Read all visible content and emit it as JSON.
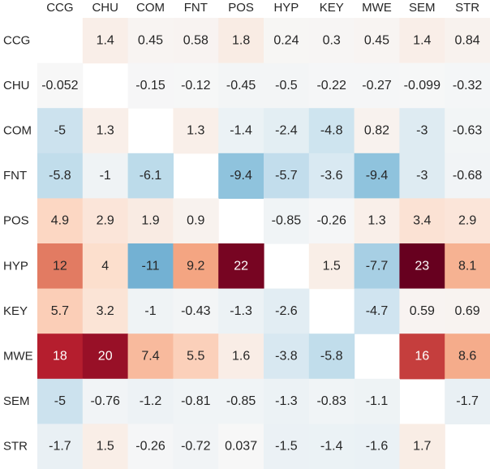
{
  "chart_data": {
    "type": "heatmap",
    "x_labels": [
      "CCG",
      "CHU",
      "COM",
      "FNT",
      "POS",
      "HYP",
      "KEY",
      "MWE",
      "SEM",
      "STR"
    ],
    "y_labels": [
      "CCG",
      "CHU",
      "COM",
      "FNT",
      "POS",
      "HYP",
      "KEY",
      "MWE",
      "SEM",
      "STR"
    ],
    "values": [
      [
        null,
        1.4,
        0.45,
        0.58,
        1.8,
        0.24,
        0.3,
        0.45,
        1.4,
        0.84
      ],
      [
        -0.052,
        null,
        -0.15,
        -0.12,
        -0.45,
        -0.5,
        -0.22,
        -0.27,
        -0.099,
        -0.32
      ],
      [
        -5,
        1.3,
        null,
        1.3,
        -1.4,
        -2.4,
        -4.8,
        0.82,
        -3,
        -0.63
      ],
      [
        -5.8,
        -1,
        -6.1,
        null,
        -9.4,
        -5.7,
        -3.6,
        -9.4,
        -3,
        -0.68
      ],
      [
        4.9,
        2.9,
        1.9,
        0.9,
        null,
        -0.85,
        -0.26,
        1.3,
        3.4,
        2.9
      ],
      [
        12,
        4,
        -11,
        9.2,
        22,
        null,
        1.5,
        -7.7,
        23,
        8.1
      ],
      [
        5.7,
        3.2,
        -1,
        -0.43,
        -1.3,
        -2.6,
        null,
        -4.7,
        0.59,
        0.69
      ],
      [
        18,
        20,
        7.4,
        5.5,
        1.6,
        -3.8,
        -5.8,
        null,
        16,
        8.6
      ],
      [
        -5,
        -0.76,
        -1.2,
        -0.81,
        -0.85,
        -1.3,
        -0.83,
        -1.1,
        null,
        -1.7
      ],
      [
        -1.7,
        1.5,
        -0.26,
        -0.72,
        0.037,
        -1.5,
        -1.4,
        -1.6,
        1.7,
        null
      ]
    ],
    "labels": [
      [
        "",
        "1.4",
        "0.45",
        "0.58",
        "1.8",
        "0.24",
        "0.3",
        "0.45",
        "1.4",
        "0.84"
      ],
      [
        "-0.052",
        "",
        "-0.15",
        "-0.12",
        "-0.45",
        "-0.5",
        "-0.22",
        "-0.27",
        "-0.099",
        "-0.32"
      ],
      [
        "-5",
        "1.3",
        "",
        "1.3",
        "-1.4",
        "-2.4",
        "-4.8",
        "0.82",
        "-3",
        "-0.63"
      ],
      [
        "-5.8",
        "-1",
        "-6.1",
        "",
        "-9.4",
        "-5.7",
        "-3.6",
        "-9.4",
        "-3",
        "-0.68"
      ],
      [
        "4.9",
        "2.9",
        "1.9",
        "0.9",
        "",
        "-0.85",
        "-0.26",
        "1.3",
        "3.4",
        "2.9"
      ],
      [
        "12",
        "4",
        "-11",
        "9.2",
        "22",
        "",
        "1.5",
        "-7.7",
        "23",
        "8.1"
      ],
      [
        "5.7",
        "3.2",
        "-1",
        "-0.43",
        "-1.3",
        "-2.6",
        "",
        "-4.7",
        "0.59",
        "0.69"
      ],
      [
        "18",
        "20",
        "7.4",
        "5.5",
        "1.6",
        "-3.8",
        "-5.8",
        "",
        "16",
        "8.6"
      ],
      [
        "-5",
        "-0.76",
        "-1.2",
        "-0.81",
        "-0.85",
        "-1.3",
        "-0.83",
        "-1.1",
        "",
        "-1.7"
      ],
      [
        "-1.7",
        "1.5",
        "-0.26",
        "-0.72",
        "0.037",
        "-1.5",
        "-1.4",
        "-1.6",
        "1.7",
        ""
      ]
    ],
    "color_range": [
      -23,
      23
    ],
    "colormap": "RdBu_r",
    "x_axis_position": "top",
    "grid": false,
    "colorbar": false
  }
}
